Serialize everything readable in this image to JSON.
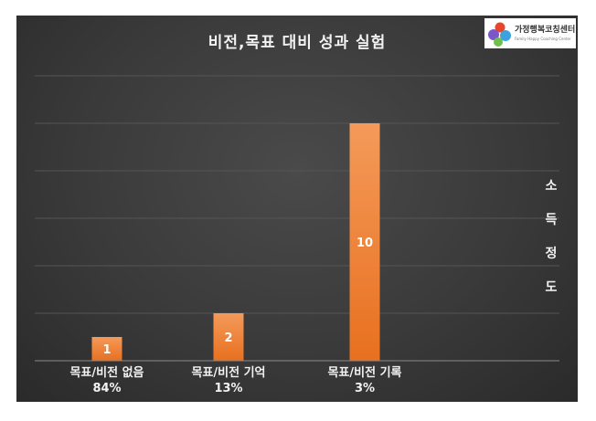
{
  "chart_data": {
    "type": "bar",
    "title": "비전,목표 대비 성과 실험",
    "categories": [
      "목표/비전 없음",
      "목표/비전 기억",
      "목표/비전 기록"
    ],
    "percentages": [
      "84%",
      "13%",
      "3%"
    ],
    "values": [
      1,
      2,
      10
    ],
    "data_labels": [
      "1",
      "2",
      "10"
    ],
    "ylabel": [
      "소",
      "득",
      "정",
      "도"
    ],
    "ylim": [
      0,
      12.5
    ],
    "grid": true,
    "bar_color": "#e8701f",
    "bar_color_light": "#f49a5a",
    "background": "#3a3a3a"
  },
  "logo": {
    "name": "가정행복코칭센터",
    "subtitle": "Family Happy Coaching Center"
  }
}
